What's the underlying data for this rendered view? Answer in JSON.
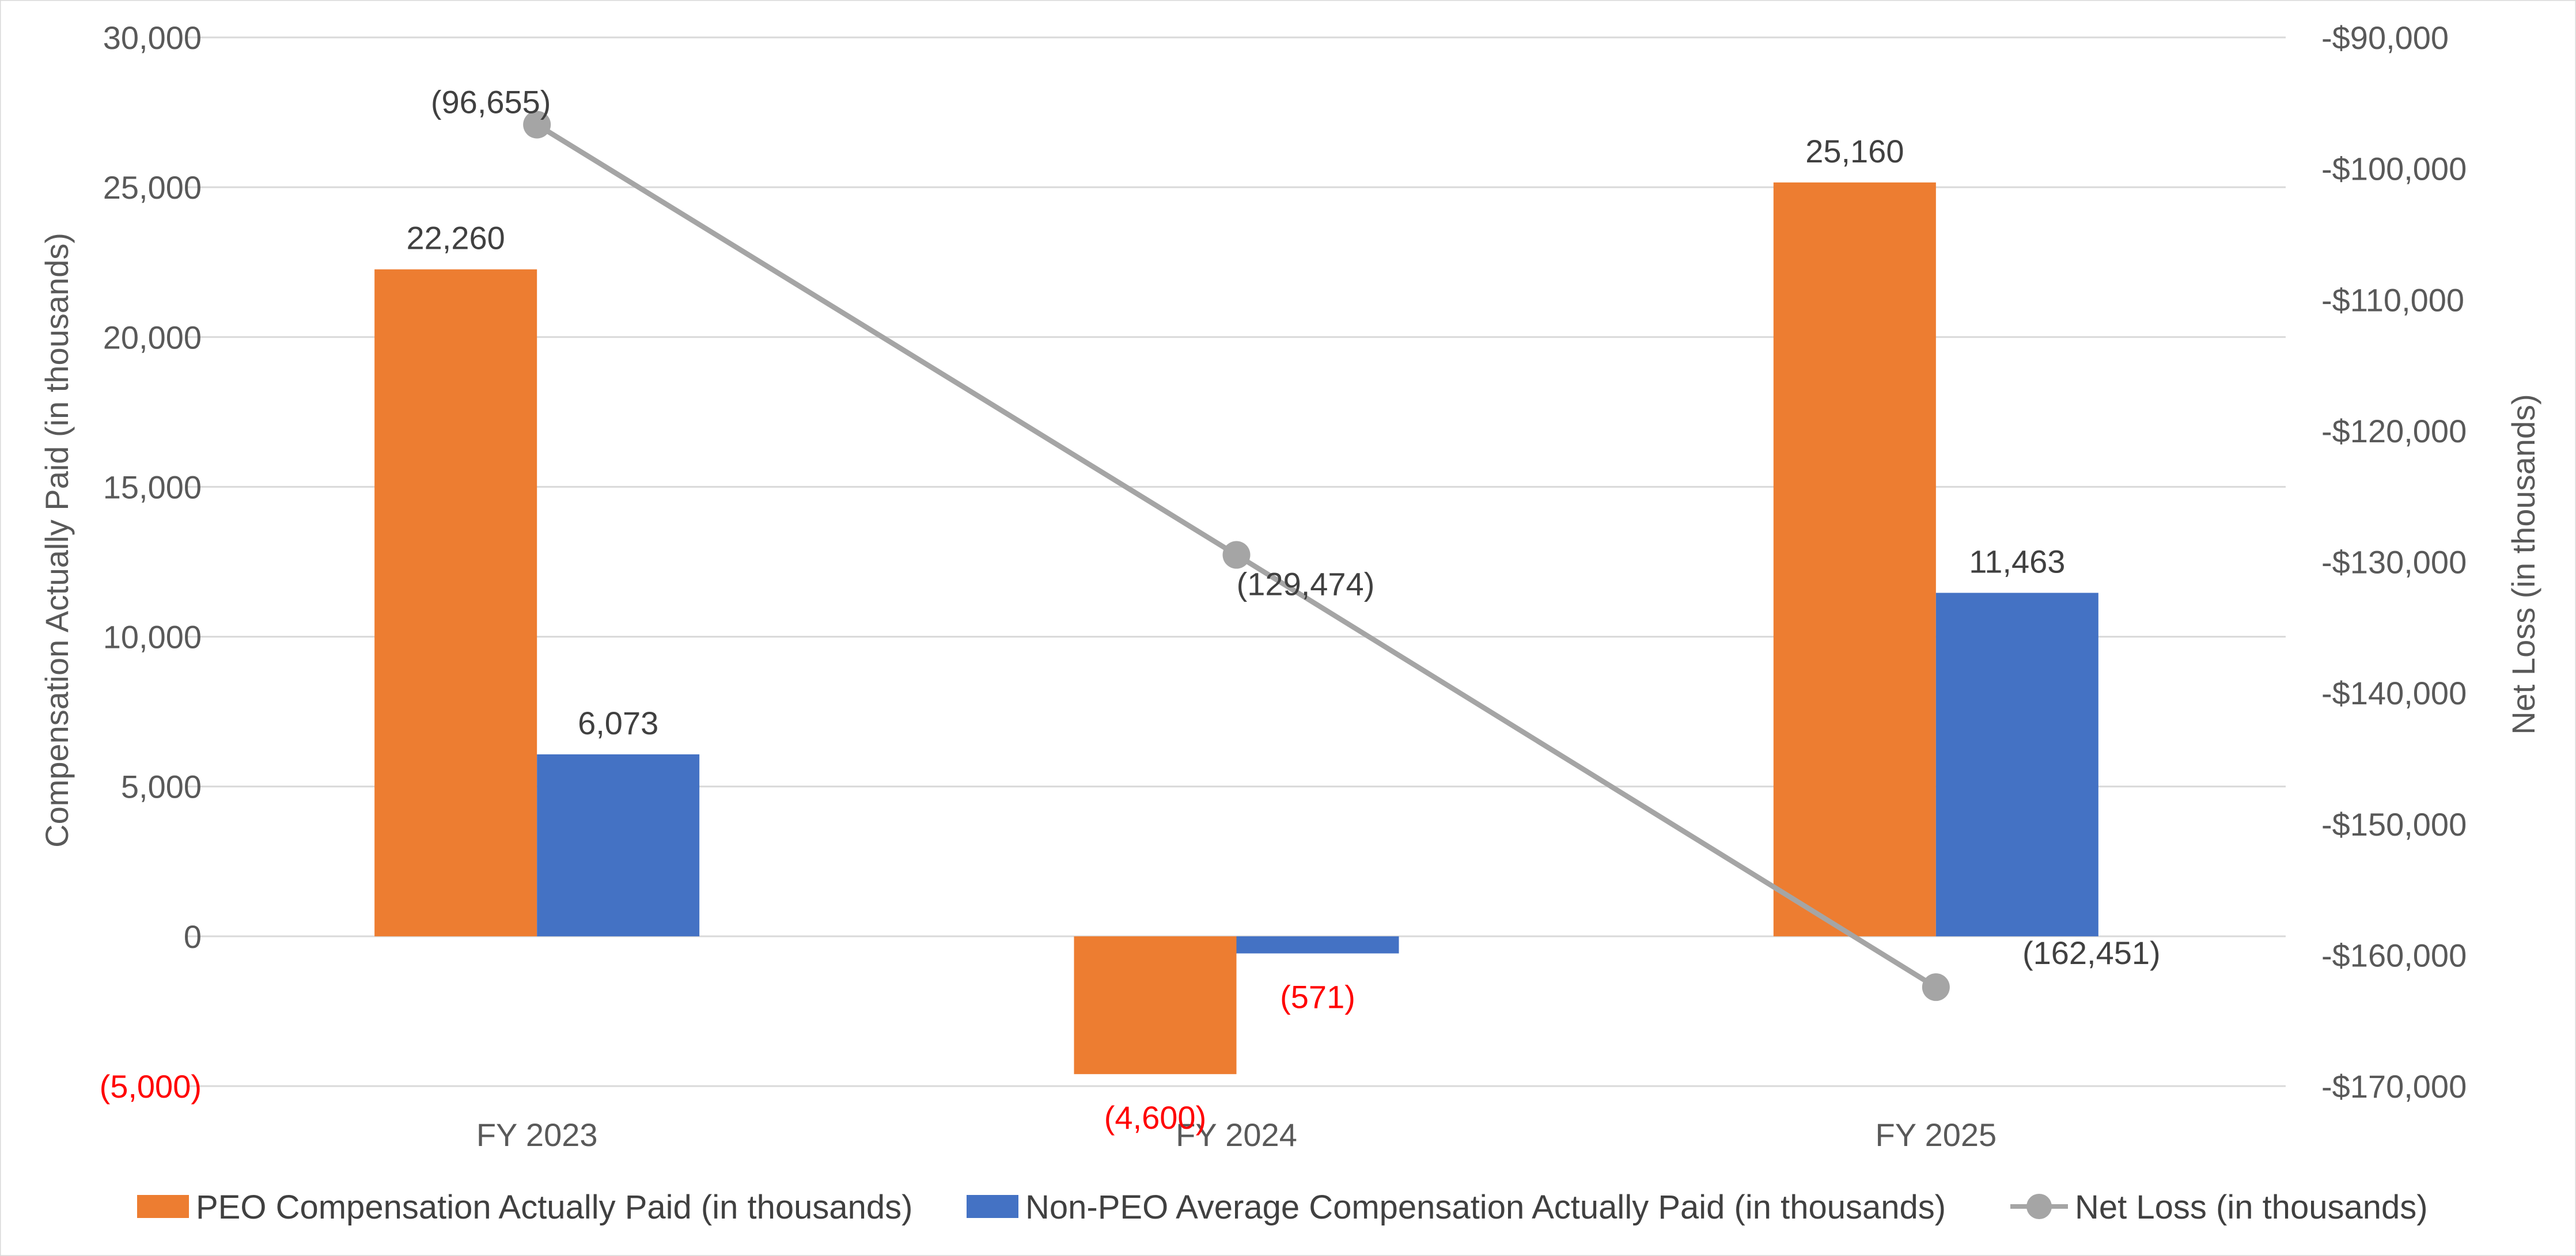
{
  "chart_data": {
    "type": "bar",
    "categories": [
      "FY 2023",
      "FY 2024",
      "FY 2025"
    ],
    "series": [
      {
        "name": "PEO Compensation Actually Paid (in thousands)",
        "type": "bar",
        "axis": "left",
        "color": "#ED7D31",
        "values": [
          22260,
          -4600,
          25160
        ],
        "labels": [
          "22,260",
          "(4,600)",
          "25,160"
        ]
      },
      {
        "name": "Non-PEO Average Compensation Actually Paid (in thousands)",
        "type": "bar",
        "axis": "left",
        "color": "#4472C4",
        "values": [
          6073,
          -571,
          11463
        ],
        "labels": [
          "6,073",
          "(571)",
          "11,463"
        ]
      },
      {
        "name": "Net Loss (in thousands)",
        "type": "line",
        "axis": "right",
        "color": "#A5A5A5",
        "values": [
          -96655,
          -129474,
          -162451
        ],
        "labels": [
          "(96,655)",
          "(129,474)",
          "(162,451)"
        ]
      }
    ],
    "title": "",
    "xlabel": "",
    "ylabel": "Compensation Actually Paid (in thousands)",
    "y2label": "Net Loss (in thousands)",
    "ylim": [
      -5000,
      30000
    ],
    "y2lim": [
      -170000,
      -90000
    ],
    "yticks": [
      -5000,
      0,
      5000,
      10000,
      15000,
      20000,
      25000,
      30000
    ],
    "ytick_labels": [
      "(5,000)",
      "0",
      "5,000",
      "10,000",
      "15,000",
      "20,000",
      "25,000",
      "30,000"
    ],
    "y2ticks": [
      -170000,
      -160000,
      -150000,
      -140000,
      -130000,
      -120000,
      -110000,
      -100000,
      -90000
    ],
    "y2tick_labels": [
      "-$170,000",
      "-$160,000",
      "-$150,000",
      "-$140,000",
      "-$130,000",
      "-$120,000",
      "-$110,000",
      "-$100,000",
      "-$90,000"
    ],
    "negative_label_color": "#FF0000",
    "grid": true,
    "legend_position": "bottom"
  }
}
